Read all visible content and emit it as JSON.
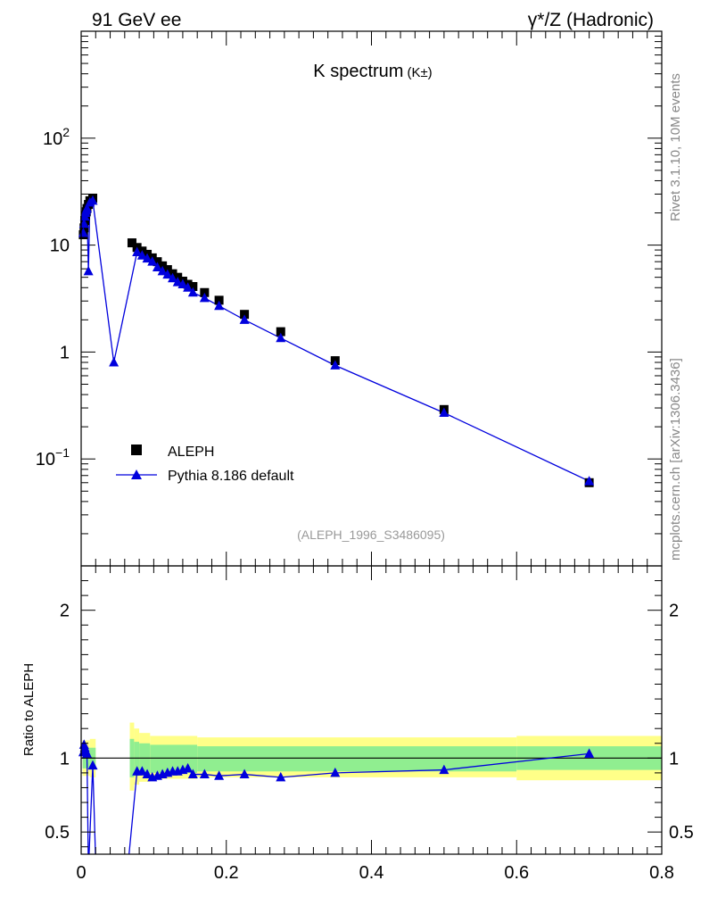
{
  "header": {
    "left_title": "91 GeV ee",
    "right_title": "γ*/Z (Hadronic)"
  },
  "side_labels": {
    "rivet": "Rivet 3.1.10,  10M events",
    "mcplots": "mcplots.cern.ch [arXiv:1306.3436]"
  },
  "chart_data": [
    {
      "type": "scatter",
      "title": "K spectrum",
      "title_suffix": "(K±)",
      "analysis_id": "(ALEPH_1996_S3486095)",
      "yscale": "log",
      "xlim": [
        0,
        0.8
      ],
      "ylim": [
        0.01,
        1000
      ],
      "ytick_labels": [
        {
          "value": 0.1,
          "label": "10",
          "exp": "−1"
        },
        {
          "value": 1,
          "label": "1",
          "exp": ""
        },
        {
          "value": 10,
          "label": "10",
          "exp": ""
        },
        {
          "value": 100,
          "label": "10",
          "exp": "2"
        }
      ],
      "legend_position": "bottom-left",
      "series": [
        {
          "name": "ALEPH",
          "marker": "square",
          "color": "#000000",
          "points": [
            [
              0.003,
              12.5
            ],
            [
              0.004,
              14.5
            ],
            [
              0.005,
              17.0
            ],
            [
              0.006,
              19.0
            ],
            [
              0.007,
              20.5
            ],
            [
              0.008,
              22.0
            ],
            [
              0.01,
              24.0
            ],
            [
              0.012,
              26.0
            ],
            [
              0.016,
              27.5
            ],
            [
              0.07,
              10.5
            ],
            [
              0.077,
              9.5
            ],
            [
              0.084,
              8.8
            ],
            [
              0.091,
              8.2
            ],
            [
              0.098,
              7.6
            ],
            [
              0.105,
              7.0
            ],
            [
              0.112,
              6.4
            ],
            [
              0.119,
              5.9
            ],
            [
              0.126,
              5.4
            ],
            [
              0.133,
              5.0
            ],
            [
              0.14,
              4.6
            ],
            [
              0.147,
              4.3
            ],
            [
              0.154,
              4.1
            ],
            [
              0.17,
              3.6
            ],
            [
              0.19,
              3.05
            ],
            [
              0.225,
              2.25
            ],
            [
              0.275,
              1.55
            ],
            [
              0.35,
              0.83
            ],
            [
              0.5,
              0.29
            ],
            [
              0.7,
              0.06
            ]
          ]
        },
        {
          "name": "Pythia 8.186 default",
          "marker": "triangle",
          "color": "#0000dd",
          "points": [
            [
              0.003,
              13.0
            ],
            [
              0.004,
              15.8
            ],
            [
              0.005,
              18.5
            ],
            [
              0.006,
              20.0
            ],
            [
              0.007,
              21.0
            ],
            [
              0.008,
              22.0
            ],
            [
              0.01,
              5.7
            ],
            [
              0.012,
              25.0
            ],
            [
              0.016,
              26.0
            ],
            [
              0.045,
              0.8
            ],
            [
              0.077,
              8.6
            ],
            [
              0.084,
              8.0
            ],
            [
              0.091,
              7.5
            ],
            [
              0.098,
              7.0
            ],
            [
              0.105,
              6.2
            ],
            [
              0.112,
              5.7
            ],
            [
              0.119,
              5.3
            ],
            [
              0.126,
              4.9
            ],
            [
              0.133,
              4.5
            ],
            [
              0.14,
              4.3
            ],
            [
              0.147,
              4.0
            ],
            [
              0.154,
              3.6
            ],
            [
              0.17,
              3.2
            ],
            [
              0.19,
              2.7
            ],
            [
              0.225,
              2.0
            ],
            [
              0.275,
              1.35
            ],
            [
              0.35,
              0.75
            ],
            [
              0.5,
              0.27
            ],
            [
              0.7,
              0.062
            ]
          ]
        }
      ]
    },
    {
      "type": "line",
      "ylabel": "Ratio to ALEPH",
      "xlim": [
        0,
        0.8
      ],
      "ylim": [
        0.35,
        2.3
      ],
      "xticks": [
        0,
        0.2,
        0.4,
        0.6,
        0.8
      ],
      "xtick_labels": [
        "0",
        "0.2",
        "0.4",
        "0.6",
        "0.8"
      ],
      "yticks": [
        0.5,
        1,
        2
      ],
      "ytick_labels": [
        "0.5",
        "1",
        "2"
      ],
      "reference_line": 1,
      "uncertainty_bands": {
        "inner_color": "#90ee90",
        "outer_color": "#ffff88",
        "bins": [
          {
            "x0": 0.002,
            "x1": 0.012,
            "inner": [
              0.93,
              1.07
            ],
            "outer": [
              0.88,
              1.12
            ]
          },
          {
            "x0": 0.012,
            "x1": 0.02,
            "inner": [
              0.93,
              1.07
            ],
            "outer": [
              0.87,
              1.13
            ]
          },
          {
            "x0": 0.067,
            "x1": 0.073,
            "inner": [
              0.87,
              1.13
            ],
            "outer": [
              0.78,
              1.24
            ]
          },
          {
            "x0": 0.073,
            "x1": 0.08,
            "inner": [
              0.88,
              1.11
            ],
            "outer": [
              0.82,
              1.2
            ]
          },
          {
            "x0": 0.08,
            "x1": 0.095,
            "inner": [
              0.89,
              1.1
            ],
            "outer": [
              0.84,
              1.17
            ]
          },
          {
            "x0": 0.095,
            "x1": 0.16,
            "inner": [
              0.9,
              1.09
            ],
            "outer": [
              0.86,
              1.15
            ]
          },
          {
            "x0": 0.16,
            "x1": 0.6,
            "inner": [
              0.91,
              1.08
            ],
            "outer": [
              0.87,
              1.14
            ]
          },
          {
            "x0": 0.6,
            "x1": 0.8,
            "inner": [
              0.92,
              1.08
            ],
            "outer": [
              0.85,
              1.15
            ]
          }
        ]
      },
      "series": [
        {
          "name": "Pythia 8.186 default",
          "color": "#0000dd",
          "points": [
            [
              0.003,
              1.04
            ],
            [
              0.004,
              1.09
            ],
            [
              0.005,
              1.07
            ],
            [
              0.006,
              1.05
            ],
            [
              0.008,
              1.03
            ],
            [
              0.01,
              0.24
            ],
            [
              0.016,
              0.95
            ],
            [
              0.02,
              0.3
            ],
            [
              0.065,
              0.3
            ],
            [
              0.077,
              0.91
            ],
            [
              0.084,
              0.91
            ],
            [
              0.091,
              0.89
            ],
            [
              0.098,
              0.87
            ],
            [
              0.105,
              0.88
            ],
            [
              0.112,
              0.89
            ],
            [
              0.119,
              0.9
            ],
            [
              0.126,
              0.91
            ],
            [
              0.133,
              0.91
            ],
            [
              0.14,
              0.92
            ],
            [
              0.147,
              0.93
            ],
            [
              0.154,
              0.89
            ],
            [
              0.17,
              0.89
            ],
            [
              0.19,
              0.88
            ],
            [
              0.225,
              0.89
            ],
            [
              0.275,
              0.87
            ],
            [
              0.35,
              0.9
            ],
            [
              0.5,
              0.92
            ],
            [
              0.7,
              1.03
            ]
          ]
        }
      ]
    }
  ]
}
